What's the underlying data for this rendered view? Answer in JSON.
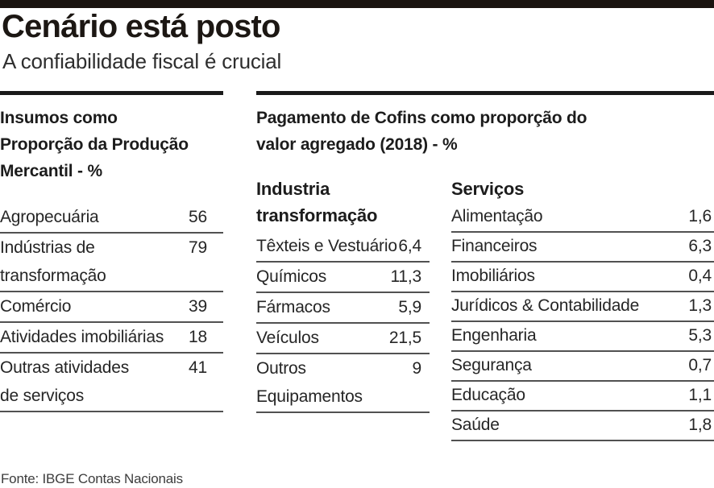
{
  "header": {
    "title": "Cenário está posto",
    "subtitle": "A confiabilidade fiscal é crucial"
  },
  "left_table": {
    "title_lines": [
      "Insumos como",
      "Proporção da Produção",
      "Mercantil - %"
    ],
    "rows": [
      {
        "label": "Agropecuária",
        "value": "56"
      },
      {
        "label": "Indústrias de transformação",
        "value": "79"
      },
      {
        "label": "Comércio",
        "value": "39"
      },
      {
        "label": "Atividades imobiliárias",
        "value": "18"
      },
      {
        "label": "Outras atividades de serviços",
        "value": "41"
      }
    ]
  },
  "right_section": {
    "title_lines": [
      "Pagamento de Cofins como proporção do",
      "valor agregado (2018) - %"
    ],
    "industry_table": {
      "title_lines": [
        "Industria",
        "transformação"
      ],
      "rows": [
        {
          "label": "Têxteis e Vestuário",
          "value": "6,4"
        },
        {
          "label": "Químicos",
          "value": "11,3"
        },
        {
          "label": "Fármacos",
          "value": "5,9"
        },
        {
          "label": "Veículos",
          "value": "21,5"
        },
        {
          "label": "Outros Equipamentos",
          "value": "9"
        }
      ]
    },
    "services_table": {
      "title": "Serviços",
      "rows": [
        {
          "label": "Alimentação",
          "value": "1,6"
        },
        {
          "label": "Financeiros",
          "value": "6,3"
        },
        {
          "label": "Imobiliários",
          "value": "0,4"
        },
        {
          "label": "Jurídicos & Contabilidade",
          "value": "1,3"
        },
        {
          "label": "Engenharia",
          "value": "5,3"
        },
        {
          "label": "Segurança",
          "value": "0,7"
        },
        {
          "label": "Educação",
          "value": "1,1"
        },
        {
          "label": "Saúde",
          "value": "1,8"
        }
      ]
    }
  },
  "footer": {
    "source": "Fonte: IBGE Contas Nacionais"
  },
  "colors": {
    "top_bar": "#1a1410",
    "rule_thick": "#1a1a1a",
    "rule_thin": "#515151",
    "text": "#262626"
  },
  "chart_data": [
    {
      "type": "table",
      "title": "Insumos como Proporção da Produção Mercantil - %",
      "categories": [
        "Agropecuária",
        "Indústrias de transformação",
        "Comércio",
        "Atividades imobiliárias",
        "Outras atividades de serviços"
      ],
      "values": [
        56,
        79,
        39,
        18,
        41
      ]
    },
    {
      "type": "table",
      "title": "Pagamento de Cofins como proporção do valor agregado (2018) - % — Industria transformação",
      "categories": [
        "Têxteis e Vestuário",
        "Químicos",
        "Fármacos",
        "Veículos",
        "Outros Equipamentos"
      ],
      "values": [
        6.4,
        11.3,
        5.9,
        21.5,
        9
      ]
    },
    {
      "type": "table",
      "title": "Pagamento de Cofins como proporção do valor agregado (2018) - % — Serviços",
      "categories": [
        "Alimentação",
        "Financeiros",
        "Imobiliários",
        "Jurídicos & Contabilidade",
        "Engenharia",
        "Segurança",
        "Educação",
        "Saúde"
      ],
      "values": [
        1.6,
        6.3,
        0.4,
        1.3,
        5.3,
        0.7,
        1.1,
        1.8
      ]
    }
  ]
}
